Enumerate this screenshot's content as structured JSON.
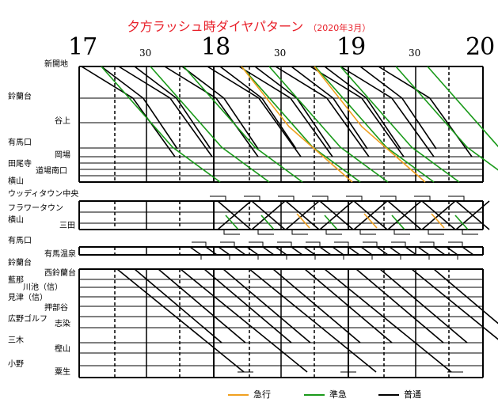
{
  "title": "夕方ラッシュ時ダイヤパターン",
  "subtitle": "（2020年3月）",
  "time_labels": {
    "hours": [
      "17",
      "18",
      "19",
      "20"
    ],
    "half": [
      "30",
      "30",
      "30"
    ]
  },
  "stations": {
    "shinkaichi": "新開地",
    "suzurandai_1": "鈴蘭台",
    "tanigami": "谷上",
    "arimaguchi_1": "有馬口",
    "okaba": "岡場",
    "taoji": "田尾寺",
    "dojo_minamiguchi": "道場南口",
    "yokoyama_1": "横山",
    "woody_town_chuo": "ウッディタウン中央",
    "flower_town": "フラワータウン",
    "yokoyama_2": "横山",
    "sanda": "三田",
    "arimaguchi_2": "有馬口",
    "arima_onsen": "有馬温泉",
    "suzurandai_2": "鈴蘭台",
    "nishi_suzurandai": "西鈴蘭台",
    "aina": "藍那",
    "kawaike": "川池（信）",
    "mitsu": "見津（信）",
    "oshibedani": "押部谷",
    "hirono_golf": "広野ゴルフ",
    "shijimi": "志染",
    "miki": "三木",
    "kashiyama": "樫山",
    "ono": "小野",
    "ao": "粟生"
  },
  "legend": {
    "express": "急行",
    "semi_express": "準急",
    "local": "普通"
  },
  "colors": {
    "express": "#f0a020",
    "semi_express": "#1a9a1a",
    "local": "#000000",
    "title": "#e8202a"
  }
}
